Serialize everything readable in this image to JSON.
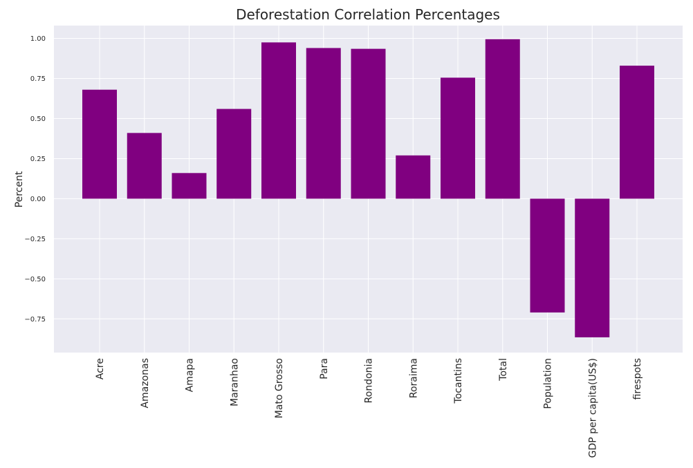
{
  "chart_data": {
    "type": "bar",
    "title": "Deforestation Correlation Percentages",
    "xlabel": "",
    "ylabel": "Percent",
    "categories": [
      "Acre",
      "Amazonas",
      "Amapa",
      "Maranhao",
      "Mato Grosso",
      "Para",
      "Rondonia",
      "Roraima",
      "Tocantins",
      "Total",
      "Population",
      "GDP per capita(US$)",
      "firespots"
    ],
    "values": [
      0.68,
      0.41,
      0.16,
      0.56,
      0.975,
      0.94,
      0.935,
      0.27,
      0.755,
      0.995,
      -0.71,
      -0.865,
      0.83
    ],
    "ylim": [
      -0.96,
      1.08
    ],
    "yticks": [
      1.0,
      0.75,
      0.5,
      0.25,
      0.0,
      -0.25,
      -0.5,
      -0.75
    ],
    "ytick_labels": [
      "1.00",
      "0.75",
      "0.50",
      "0.25",
      "0.00",
      "−0.25",
      "−0.50",
      "−0.75"
    ],
    "grid": true,
    "bar_color": "#800080",
    "background_color": "#eaeaf2"
  }
}
